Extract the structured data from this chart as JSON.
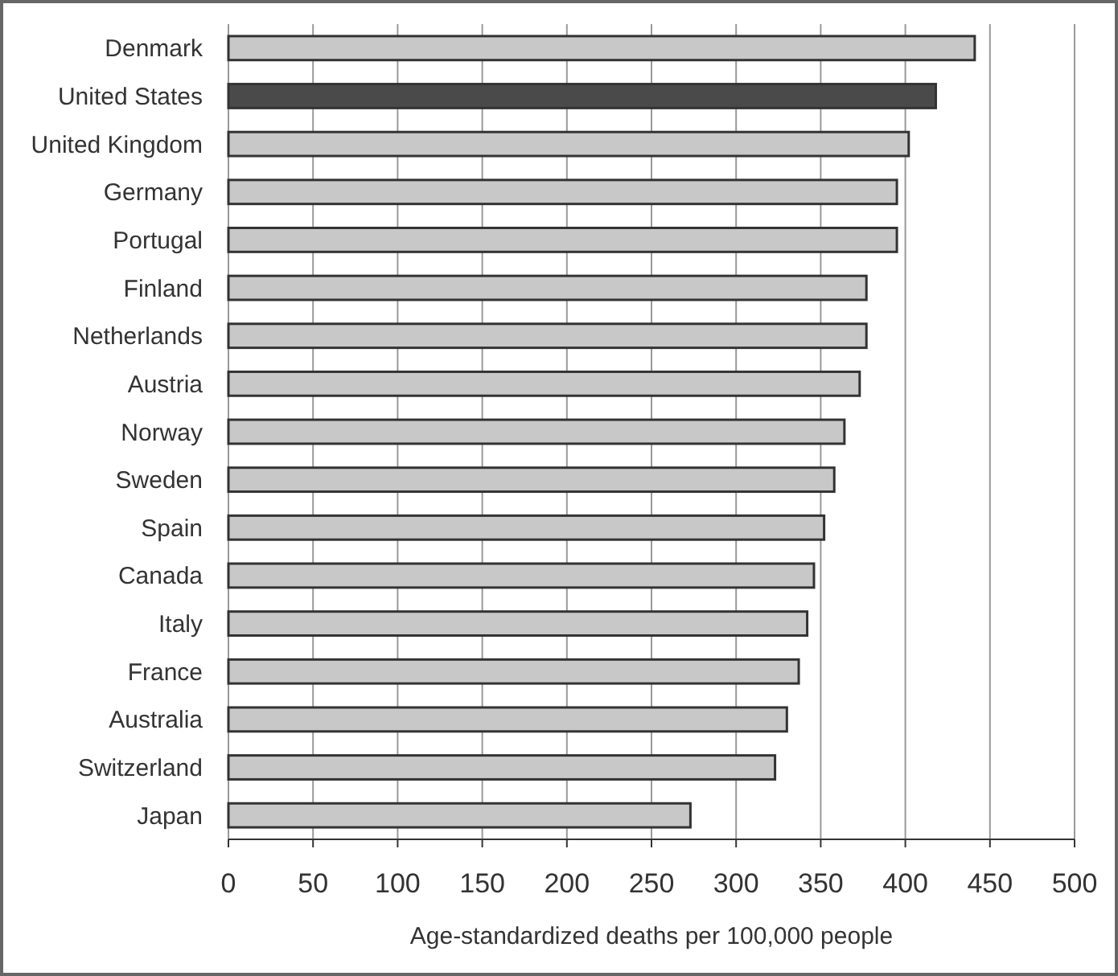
{
  "chart_data": {
    "type": "bar",
    "orientation": "horizontal",
    "xlabel": "Age-standardized deaths per 100,000 people",
    "categories": [
      "Denmark",
      "United States",
      "United Kingdom",
      "Germany",
      "Portugal",
      "Finland",
      "Netherlands",
      "Austria",
      "Norway",
      "Sweden",
      "Spain",
      "Canada",
      "Italy",
      "France",
      "Australia",
      "Switzerland",
      "Japan"
    ],
    "values": [
      441,
      418,
      402,
      395,
      395,
      377,
      377,
      373,
      364,
      358,
      352,
      346,
      342,
      337,
      330,
      323,
      273
    ],
    "colors": [
      "#c8c8c8",
      "#4a4a4a",
      "#c8c8c8",
      "#c8c8c8",
      "#c8c8c8",
      "#c8c8c8",
      "#c8c8c8",
      "#c8c8c8",
      "#c8c8c8",
      "#c8c8c8",
      "#c8c8c8",
      "#c8c8c8",
      "#c8c8c8",
      "#c8c8c8",
      "#c8c8c8",
      "#c8c8c8",
      "#c8c8c8"
    ],
    "xlim": [
      0,
      500
    ],
    "xticks": [
      0,
      50,
      100,
      150,
      200,
      250,
      300,
      350,
      400,
      450,
      500
    ],
    "grid": "x"
  }
}
